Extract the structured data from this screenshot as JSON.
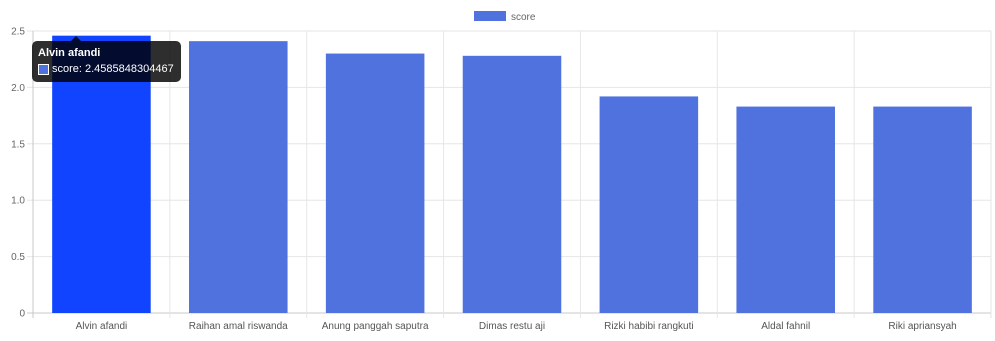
{
  "chart_data": {
    "type": "bar",
    "categories": [
      "Alvin afandi",
      "Raihan amal riswanda",
      "Anung panggah saputra",
      "Dimas restu aji",
      "Rizki habibi rangkuti",
      "Aldal fahnil",
      "Riki apriansyah"
    ],
    "series": [
      {
        "name": "score",
        "values": [
          2.4585848304467,
          2.41,
          2.3,
          2.28,
          1.92,
          1.83,
          1.83
        ],
        "color": "#4f72de",
        "highlight_color": "#1144ff"
      }
    ],
    "highlighted_index": 0,
    "ylim": [
      0,
      2.5
    ],
    "yticks": [
      0,
      0.5,
      1.0,
      1.5,
      2.0,
      2.5
    ],
    "ytick_labels": [
      "0",
      "0.5",
      "1.0",
      "1.5",
      "2.0",
      "2.5"
    ],
    "grid": true,
    "legend_position": "top-center",
    "tooltip": {
      "title": "Alvin afandi",
      "label": "score: 2.4585848304467"
    }
  }
}
